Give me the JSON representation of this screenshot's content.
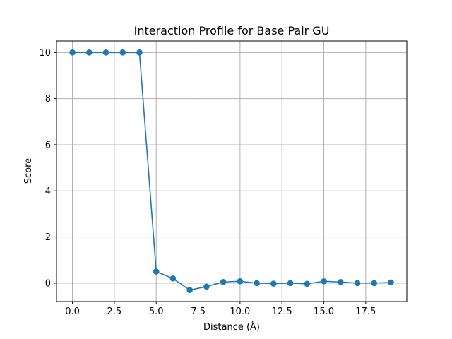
{
  "chart_data": {
    "type": "line",
    "title": "Interaction Profile for Base Pair GU",
    "xlabel": "Distance (Å)",
    "ylabel": "Score",
    "xlim": [
      -0.95,
      19.95
    ],
    "ylim": [
      -0.8,
      10.5
    ],
    "xticks": [
      0,
      2.5,
      5,
      7.5,
      10,
      12.5,
      15,
      17.5
    ],
    "xtick_labels": [
      "0.0",
      "2.5",
      "5.0",
      "7.5",
      "10.0",
      "12.5",
      "15.0",
      "17.5"
    ],
    "yticks": [
      0,
      2,
      4,
      6,
      8,
      10
    ],
    "ytick_labels": [
      "0",
      "2",
      "4",
      "6",
      "8",
      "10"
    ],
    "grid": true,
    "marker": "circle",
    "color": "#1f77b4",
    "series": [
      {
        "x": [
          0,
          1,
          2,
          3,
          4,
          5,
          6,
          7,
          8,
          9,
          10,
          11,
          12,
          13,
          14,
          15,
          16,
          17,
          18,
          19
        ],
        "y": [
          10,
          10,
          10,
          10,
          10,
          0.5,
          0.2,
          -0.3,
          -0.15,
          0.05,
          0.08,
          0.0,
          -0.02,
          0.0,
          -0.03,
          0.08,
          0.05,
          0.0,
          0.0,
          0.03
        ]
      }
    ]
  }
}
